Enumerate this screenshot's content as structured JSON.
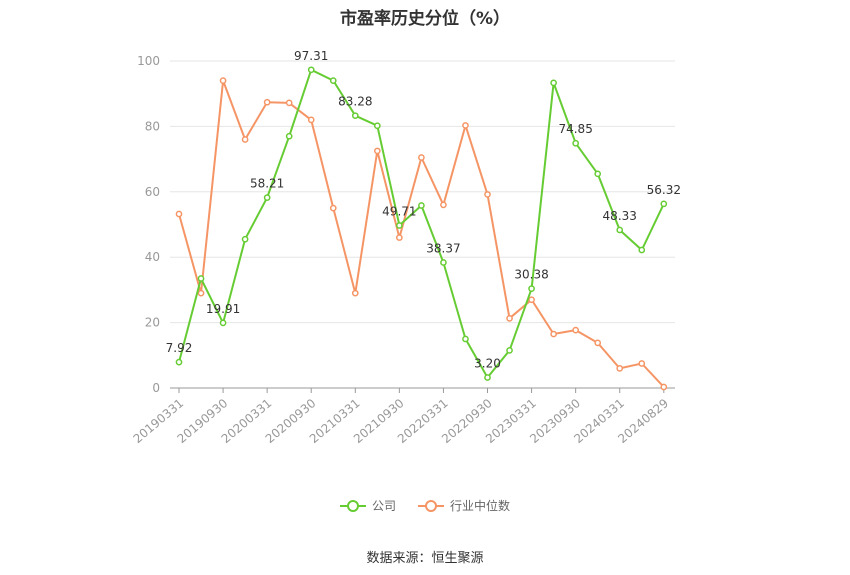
{
  "chart_data": {
    "type": "line",
    "title": "市盈率历史分位（%）",
    "xlabel": "",
    "ylabel": "",
    "ylim": [
      0,
      100
    ],
    "yticks": [
      0,
      20,
      40,
      60,
      80,
      100
    ],
    "grid": true,
    "legend_placement": "bottom",
    "x": [
      "20190331",
      "20190630",
      "20190930",
      "20191231",
      "20200331",
      "20200630",
      "20200930",
      "20201231",
      "20210331",
      "20210630",
      "20210930",
      "20211231",
      "20220331",
      "20220630",
      "20220930",
      "20221231",
      "20230331",
      "20230630",
      "20230930",
      "20231231",
      "20240331",
      "20240630",
      "20240829"
    ],
    "x_tick_labels": [
      "20190331",
      "20190930",
      "20200331",
      "20200930",
      "20210331",
      "20210930",
      "20220331",
      "20220930",
      "20230331",
      "20230930",
      "20240331",
      "20240829"
    ],
    "series": [
      {
        "name": "公司",
        "color": "#66cc33",
        "values": [
          7.92,
          33.5,
          19.91,
          45.5,
          58.21,
          77.0,
          97.31,
          94.0,
          83.28,
          80.2,
          49.71,
          55.8,
          38.37,
          15.0,
          3.2,
          11.5,
          30.38,
          93.3,
          74.85,
          65.5,
          48.33,
          42.2,
          56.32
        ],
        "data_labels": {
          "0": "7.92",
          "2": "19.91",
          "4": "58.21",
          "6": "97.31",
          "8": "83.28",
          "10": "49.71",
          "12": "38.37",
          "14": "3.20",
          "16": "30.38",
          "18": "74.85",
          "20": "48.33",
          "22": "56.32"
        }
      },
      {
        "name": "行业中位数",
        "color": "#f59565",
        "values": [
          53.2,
          29.0,
          94.0,
          76.0,
          87.4,
          87.2,
          82.0,
          55.0,
          29.0,
          72.5,
          46.0,
          70.5,
          56.0,
          80.3,
          59.2,
          21.3,
          27.0,
          16.5,
          17.7,
          13.8,
          6.0,
          7.5,
          0.3
        ]
      }
    ]
  },
  "source": "数据来源：恒生聚源"
}
